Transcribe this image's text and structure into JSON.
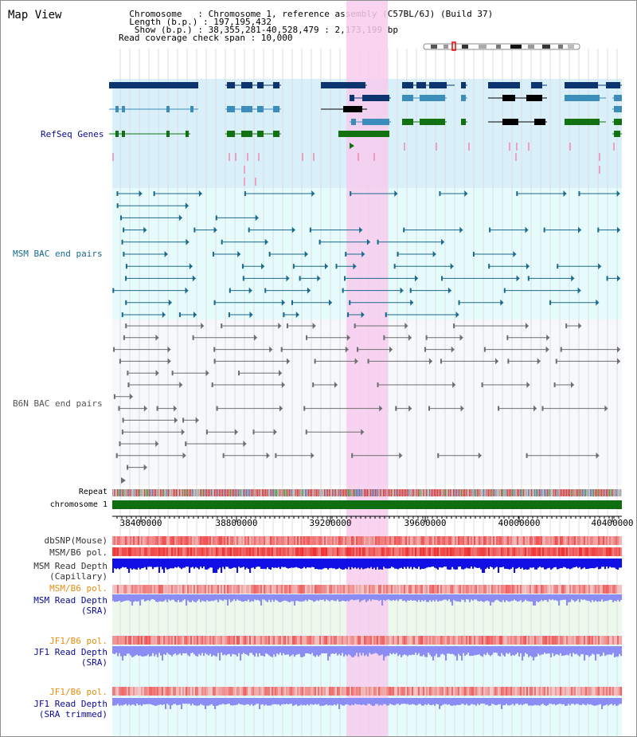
{
  "header": {
    "title": "Map View",
    "info_lines": [
      "  Chromosome   : Chromosome 1, reference assembly (C57BL/6J) (Build 37)",
      "  Length (b.p.) : 197,195,432",
      "   Show (b.p.) : 38,355,281-40,528,479 : 2,173,199 bp",
      "Read coverage check span : 10,000"
    ]
  },
  "tracks": {
    "refseq": "RefSeq Genes",
    "msm_bac": "MSM BAC end pairs",
    "b6n_bac": "B6N BAC end pairs",
    "repeat": "Repeat",
    "chromosome": "chromosome 1",
    "dbsnp": "dbSNP(Mouse)",
    "msm_pol": "MSM/B6 pol.",
    "msm_depth_cap_1": "MSM Read Depth",
    "msm_depth_cap_2": "(Capillary)",
    "msm_pol2": "MSM/B6 pol.",
    "msm_sra_1": "MSM Read Depth",
    "msm_sra_2": "(SRA)",
    "jf1_pol": "JF1/B6 pol.",
    "jf1_sra_1": "JF1 Read Depth",
    "jf1_sra_2": "(SRA)",
    "jf1_pol2": "JF1/B6 pol.",
    "jf1_trim_1": "JF1 Read Depth",
    "jf1_trim_2": "(SRA trimmed)"
  },
  "axis": {
    "ticks": [
      "38400000",
      "38800000",
      "39200000",
      "39600000",
      "40000000",
      "40400000"
    ]
  },
  "colors": {
    "gene_dark": "#0c3570",
    "gene_mid": "#3c8cbc",
    "gene_green": "#127212",
    "msm_bac": "#1a6a8c",
    "b6n_bac": "#6e6e6e",
    "highlight": "#f7cdef",
    "refseq_bg": "#d9f0fa",
    "msm_bg": "#e6fbfb",
    "pink_tick": "#f08ab0",
    "chrom_bar": "#0f6e0f",
    "depth_blue": "#1010e6",
    "depth_light": "#8c8cf5",
    "pol_red": "#f46b6b",
    "label_blue": "#0a0a9a",
    "label_orange": "#e29010",
    "label_teal": "#1a6a8c"
  }
}
